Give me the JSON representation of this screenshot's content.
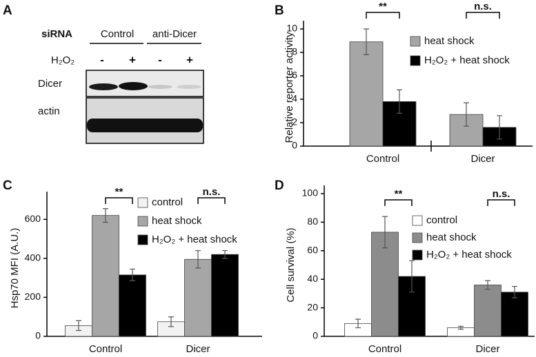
{
  "blot": {
    "panel": "A",
    "row_header": "siRNA",
    "groups": [
      "Control",
      "anti-Dicer"
    ],
    "treatment": "H₂O₂",
    "lanes": [
      "-",
      "+",
      "-",
      "+"
    ],
    "rows": [
      "Dicer",
      "actin"
    ]
  },
  "chart_data": [
    {
      "type": "bar",
      "panel": "B",
      "y_label": "Relative reporter activity",
      "categories": [
        "Control",
        "Dicer"
      ],
      "series": [
        {
          "name": "heat shock",
          "color": "#a6a6a6",
          "values": [
            8.9,
            2.7
          ],
          "errors": [
            1.1,
            1.0
          ]
        },
        {
          "name": "H₂O₂ + heat shock",
          "color": "#000000",
          "values": [
            3.8,
            1.6
          ],
          "errors": [
            1.0,
            1.0
          ]
        }
      ],
      "annotations": [
        "**",
        "n.s."
      ],
      "ylim": [
        0,
        10
      ],
      "yticks": [
        0,
        2,
        4,
        6,
        8,
        10
      ]
    },
    {
      "type": "bar",
      "panel": "C",
      "y_label": "Hsp70 MFI (A.U.)",
      "categories": [
        "Control",
        "Dicer"
      ],
      "series": [
        {
          "name": "control",
          "color": "#f2f2f2",
          "values": [
            55,
            75
          ],
          "errors": [
            25,
            25
          ]
        },
        {
          "name": "heat shock",
          "color": "#a6a6a6",
          "values": [
            620,
            395
          ],
          "errors": [
            35,
            45
          ]
        },
        {
          "name": "H₂O₂ + heat shock",
          "color": "#000000",
          "values": [
            315,
            420
          ],
          "errors": [
            30,
            20
          ]
        }
      ],
      "annotations": [
        "**",
        "n.s."
      ],
      "ylim": [
        0,
        700
      ],
      "yticks": [
        0,
        200,
        400,
        600
      ]
    },
    {
      "type": "bar",
      "panel": "D",
      "y_label": "Cell survival (%)",
      "categories": [
        "Control",
        "Dicer"
      ],
      "series": [
        {
          "name": "control",
          "color": "#ffffff",
          "values": [
            9,
            6
          ],
          "errors": [
            3,
            1
          ]
        },
        {
          "name": "heat shock",
          "color": "#8c8c8c",
          "values": [
            73,
            36
          ],
          "errors": [
            11,
            3
          ]
        },
        {
          "name": "H₂O₂ + heat shock",
          "color": "#000000",
          "values": [
            42,
            31
          ],
          "errors": [
            11,
            4
          ]
        }
      ],
      "annotations": [
        "**",
        "n.s."
      ],
      "ylim": [
        0,
        100
      ],
      "yticks": [
        0,
        20,
        40,
        60,
        80,
        100
      ]
    }
  ]
}
